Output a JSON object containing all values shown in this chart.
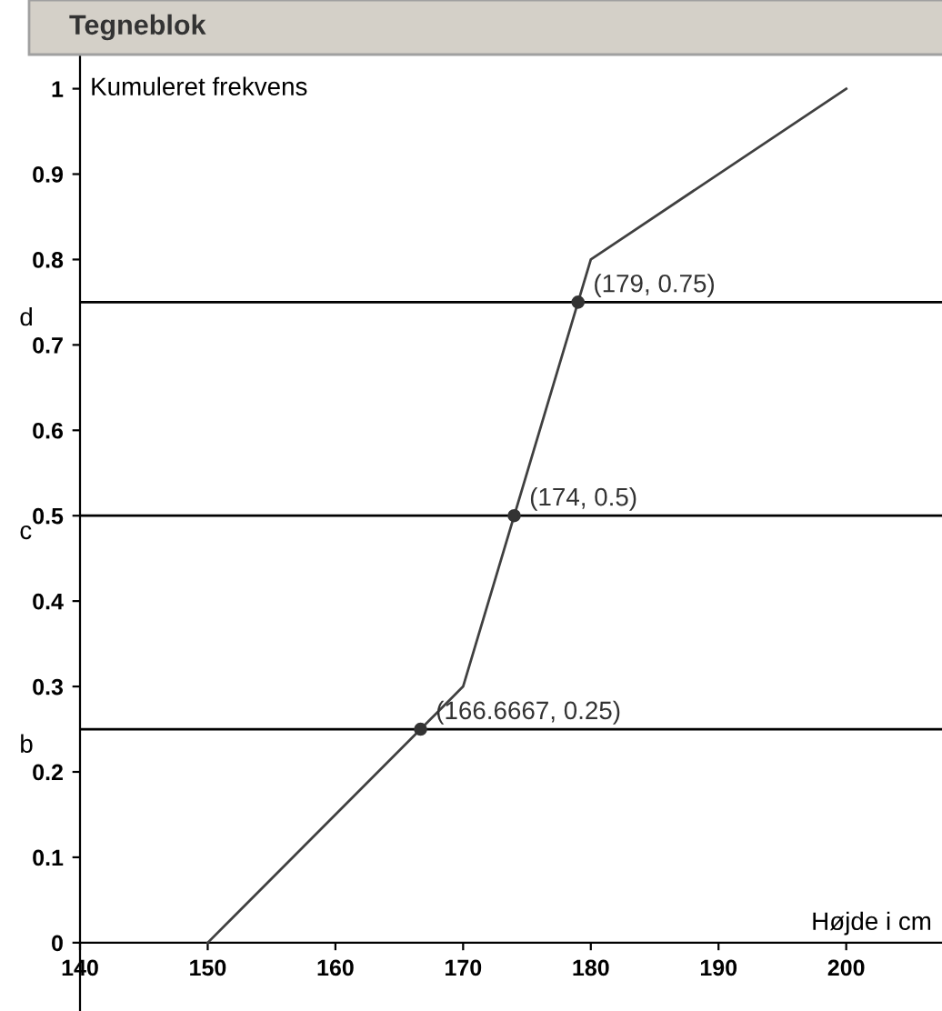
{
  "chart_data": {
    "type": "line",
    "title": "Tegneblok",
    "ylabel": "Kumuleret frekvens",
    "xlabel": "Højde i cm",
    "series": [
      {
        "x": [
          150,
          170,
          180,
          200
        ],
        "values": [
          0,
          0.3,
          0.8,
          1
        ],
        "color": "#404040"
      },
      {
        "type": "scatter",
        "x": [
          166.6667,
          174,
          179
        ],
        "values": [
          0.25,
          0.5,
          0.75
        ],
        "color": "#333333"
      }
    ],
    "annotations": [
      {
        "text": "(166.6667, 0.25)",
        "x": 166.6667,
        "y": 0.25
      },
      {
        "text": "(174, 0.5)",
        "x": 174,
        "y": 0.5
      },
      {
        "text": "(179, 0.75)",
        "x": 179,
        "y": 0.75
      }
    ],
    "ref_lines": [
      {
        "axis": "y",
        "value": 0.25,
        "label": "b",
        "color": "#000000"
      },
      {
        "axis": "y",
        "value": 0.5,
        "label": "c",
        "color": "#000000"
      },
      {
        "axis": "y",
        "value": 0.75,
        "label": "d",
        "color": "#000000"
      }
    ],
    "xlim": [
      140,
      207.5
    ],
    "ylim": [
      -0.08,
      1.04
    ],
    "xticks": [
      140,
      150,
      160,
      170,
      180,
      190,
      200
    ],
    "yticks": [
      0,
      0.1,
      0.2,
      0.3,
      0.4,
      0.5,
      0.6,
      0.7,
      0.8,
      0.9,
      1
    ],
    "grid": false,
    "legend": false
  }
}
